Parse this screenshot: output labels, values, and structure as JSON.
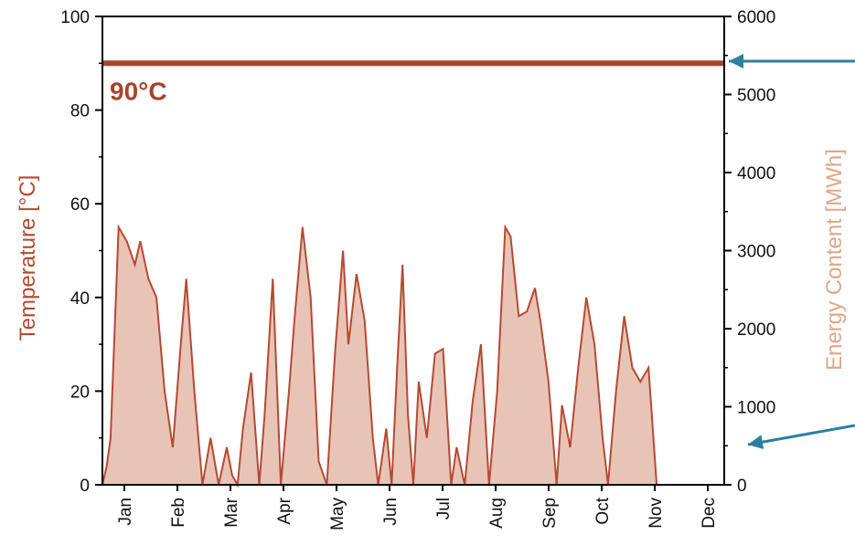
{
  "chart_data": {
    "type": "area",
    "title": "",
    "x_categories": [
      "Jan",
      "Feb",
      "Mar",
      "Apr",
      "May",
      "Jun",
      "Jul",
      "Aug",
      "Sep",
      "Oct",
      "Nov",
      "Dec"
    ],
    "y_left": {
      "label": "Temperature [°C]",
      "range": [
        0,
        100
      ],
      "ticks": [
        0,
        20,
        40,
        60,
        80,
        100
      ]
    },
    "y_right": {
      "label": "Energy Content [MWh]",
      "range": [
        0,
        6000
      ],
      "ticks": [
        0,
        1000,
        2000,
        3000,
        4000,
        5000,
        6000
      ]
    },
    "reference_line": {
      "value": 90,
      "label": "90°C"
    },
    "series": [
      {
        "x": [
          0,
          0.08,
          0.15,
          0.3,
          0.45,
          0.6,
          0.7,
          0.85,
          1.0,
          1.15,
          1.3,
          1.45,
          1.55,
          1.7,
          1.85,
          2.0,
          2.15,
          2.3,
          2.4,
          2.5,
          2.6,
          2.75,
          2.9,
          3.0,
          3.15,
          3.3,
          3.45,
          3.55,
          3.7,
          3.85,
          4.0,
          4.15,
          4.3,
          4.45,
          4.55,
          4.7,
          4.85,
          5.0,
          5.1,
          5.25,
          5.35,
          5.45,
          5.55,
          5.65,
          5.75,
          5.85,
          6.0,
          6.15,
          6.3,
          6.45,
          6.55,
          6.7,
          6.85,
          7.0,
          7.15,
          7.3,
          7.45,
          7.55,
          7.7,
          7.85,
          8.0,
          8.1,
          8.25,
          8.4,
          8.5,
          8.65,
          8.8,
          8.95,
          9.1,
          9.25,
          9.35,
          9.5,
          9.65,
          9.8,
          9.95,
          10.1,
          10.25,
          10.4,
          10.55,
          10.65,
          10.8,
          10.95,
          11.1,
          11.25,
          11.35,
          11.5
        ],
        "y": [
          0,
          4,
          10,
          55,
          52,
          47,
          52,
          44,
          40,
          20,
          8,
          30,
          44,
          20,
          0,
          10,
          0,
          8,
          2,
          0,
          12,
          24,
          0,
          15,
          44,
          0,
          20,
          35,
          55,
          40,
          5,
          0,
          28,
          50,
          30,
          45,
          35,
          10,
          0,
          12,
          0,
          25,
          47,
          15,
          0,
          22,
          10,
          28,
          29,
          0,
          8,
          0,
          18,
          30,
          0,
          20,
          55,
          53,
          36,
          37,
          42,
          35,
          22,
          0,
          17,
          8,
          25,
          40,
          30,
          10,
          0,
          20,
          36,
          25,
          22,
          25,
          0,
          0,
          0,
          0,
          0,
          0,
          0,
          0,
          0,
          0
        ],
        "fill": "#e8c4b7",
        "stroke": "#b54a33"
      }
    ],
    "colors": {
      "temperature_axis_title": "#b5482e",
      "energy_axis_title": "#dfa687",
      "reference_line": "#a9432c",
      "arrow": "#2d7ea2"
    }
  }
}
